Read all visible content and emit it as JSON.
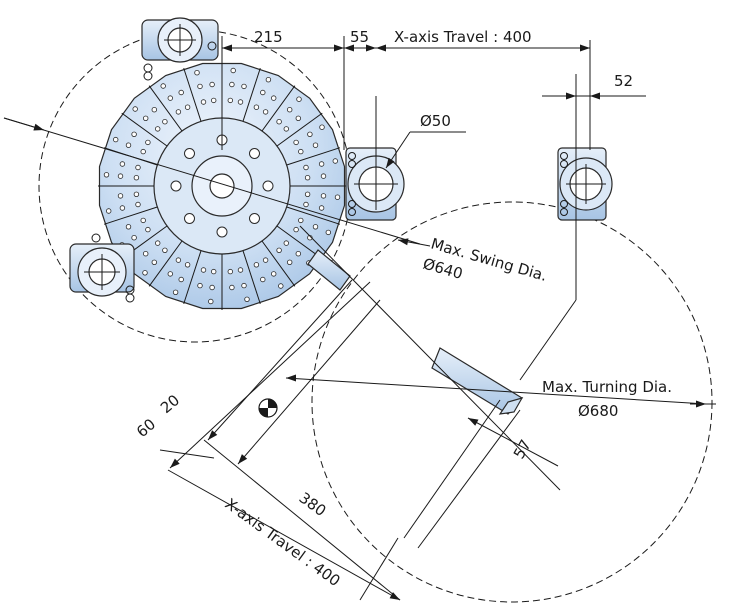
{
  "labels": {
    "d215": "215",
    "d55": "55",
    "x_travel_top": "X-axis Travel : 400",
    "d52": "52",
    "d50": "Ø50",
    "swing_label": "Max. Swing Dia.",
    "swing_value": "Ø640",
    "turning_label": "Max. Turning Dia.",
    "turning_value": "Ø680",
    "d20": "20",
    "d60": "60",
    "d380": "380",
    "d57": "57",
    "x_travel_diag": "X-axis Travel : 400"
  },
  "colors": {
    "part_fill": "#c9ddf2",
    "part_fill_light": "#e4eefa",
    "part_fill_dark": "#9fbfe0",
    "line": "#1a1a1a"
  },
  "icons": {
    "center_mark": "center-of-gravity-icon"
  }
}
